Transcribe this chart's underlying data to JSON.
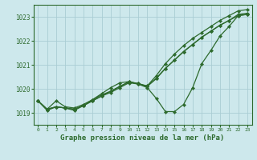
{
  "title": "Graphe pression niveau de la mer (hPa)",
  "bg_color": "#cde8ec",
  "grid_color": "#aacdd4",
  "line_color": "#2d6a2d",
  "xlim": [
    -0.5,
    23.5
  ],
  "ylim": [
    1018.5,
    1023.5
  ],
  "yticks": [
    1019,
    1020,
    1021,
    1022,
    1023
  ],
  "xticks": [
    0,
    1,
    2,
    3,
    4,
    5,
    6,
    7,
    8,
    9,
    10,
    11,
    12,
    13,
    14,
    15,
    16,
    17,
    18,
    19,
    20,
    21,
    22,
    23
  ],
  "series": [
    {
      "x": [
        0,
        1,
        2,
        3,
        4,
        5,
        6,
        7,
        8,
        9,
        10,
        11,
        12,
        13,
        14,
        15,
        16,
        17,
        18,
        19,
        20,
        21,
        22,
        23
      ],
      "y": [
        1019.5,
        1019.15,
        1019.5,
        1019.25,
        1019.2,
        1019.35,
        1019.55,
        1019.75,
        1019.9,
        1020.1,
        1020.28,
        1020.22,
        1020.12,
        1020.55,
        1021.05,
        1021.45,
        1021.8,
        1022.1,
        1022.35,
        1022.6,
        1022.85,
        1023.05,
        1023.25,
        1023.3
      ]
    },
    {
      "x": [
        0,
        1,
        2,
        3,
        4,
        5,
        6,
        7,
        8,
        9,
        10,
        11,
        12,
        13,
        14,
        15,
        16,
        17,
        18,
        19,
        20,
        21,
        22,
        23
      ],
      "y": [
        1019.5,
        1019.15,
        1019.25,
        1019.2,
        1019.15,
        1019.3,
        1019.5,
        1019.7,
        1019.85,
        1020.05,
        1020.25,
        1020.2,
        1020.1,
        1020.45,
        1020.85,
        1021.2,
        1021.55,
        1021.85,
        1022.15,
        1022.4,
        1022.65,
        1022.85,
        1023.1,
        1023.15
      ]
    },
    {
      "x": [
        0,
        1,
        2,
        3,
        4,
        5,
        6,
        7,
        8,
        9,
        10,
        11,
        12,
        13,
        14,
        15,
        16,
        17,
        18,
        19,
        20,
        21,
        22,
        23
      ],
      "y": [
        1019.5,
        1019.15,
        1019.25,
        1019.2,
        1019.15,
        1019.3,
        1019.5,
        1019.7,
        1019.9,
        1020.1,
        1020.3,
        1020.22,
        1020.1,
        1020.42,
        1020.85,
        1021.2,
        1021.55,
        1021.85,
        1022.15,
        1022.4,
        1022.65,
        1022.85,
        1023.05,
        1023.1
      ]
    },
    {
      "x": [
        0,
        1,
        2,
        3,
        4,
        5,
        6,
        7,
        8,
        9,
        10,
        11,
        12,
        13,
        14,
        15,
        16,
        17,
        18,
        19,
        20,
        21,
        22,
        23
      ],
      "y": [
        1019.5,
        1019.1,
        1019.25,
        1019.2,
        1019.1,
        1019.3,
        1019.55,
        1019.8,
        1020.05,
        1020.25,
        1020.3,
        1020.2,
        1020.05,
        1019.6,
        1019.05,
        1019.05,
        1019.35,
        1020.05,
        1021.05,
        1021.6,
        1022.2,
        1022.6,
        1023.05,
        1023.1
      ]
    }
  ]
}
